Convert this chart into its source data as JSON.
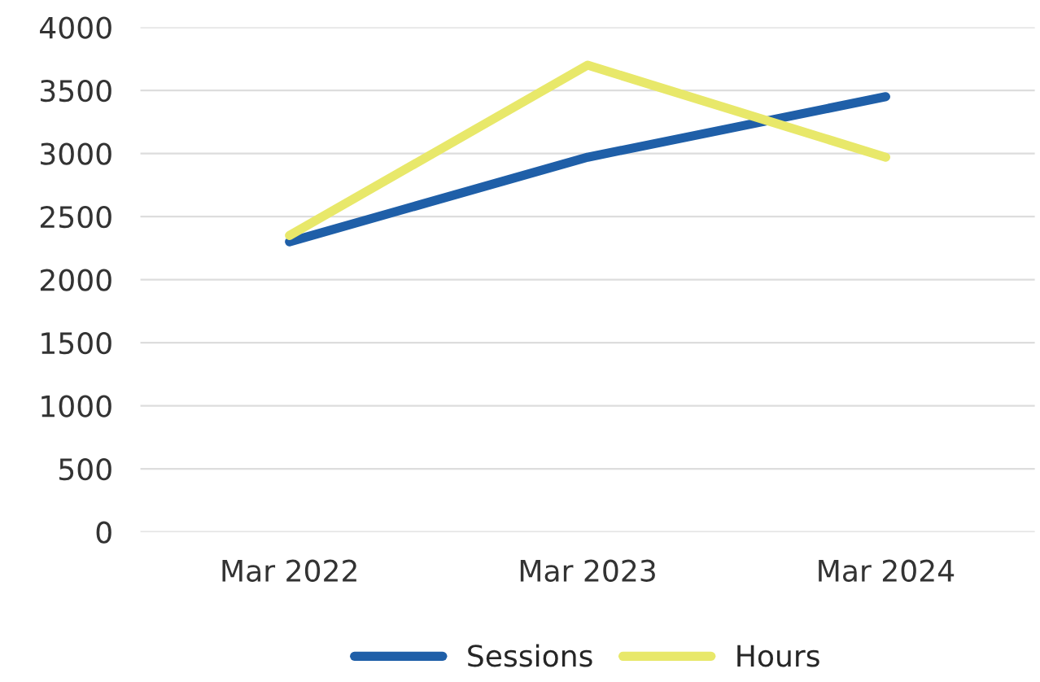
{
  "chart_data": {
    "type": "line",
    "categories": [
      "Mar 2022",
      "Mar 2023",
      "Mar 2024"
    ],
    "series": [
      {
        "name": "Sessions",
        "color": "#1f5fa8",
        "values": [
          2300,
          2970,
          3450
        ]
      },
      {
        "name": "Hours",
        "color": "#e8e86a",
        "values": [
          2350,
          3700,
          2970
        ]
      }
    ],
    "ylim": [
      0,
      4000
    ],
    "yticks": [
      0,
      500,
      1000,
      1500,
      2000,
      2500,
      3000,
      3500,
      4000
    ],
    "grid": "y",
    "legend": "bottom",
    "marker": "none",
    "line_style": "solid"
  }
}
